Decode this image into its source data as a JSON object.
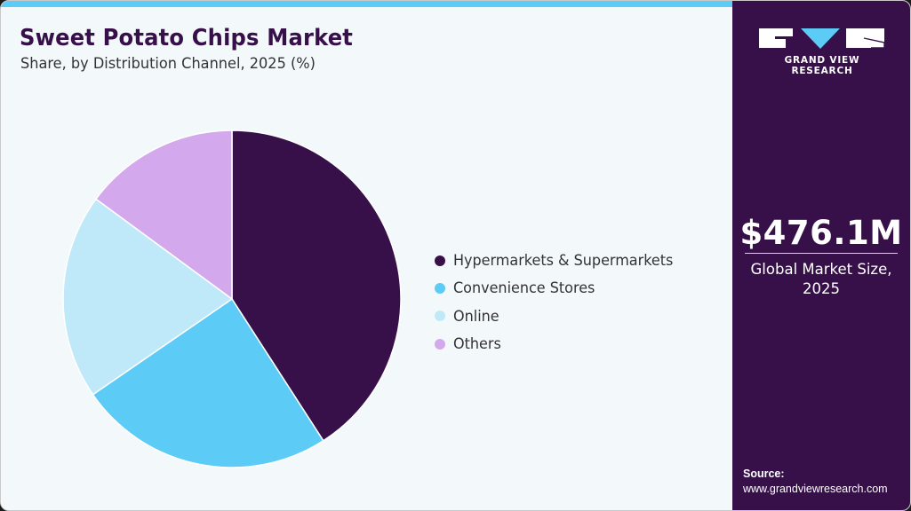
{
  "header": {
    "title": "Sweet Potato Chips Market",
    "subtitle": "Share, by Distribution Channel, 2025 (%)"
  },
  "chart_data": {
    "type": "pie",
    "title": "Sweet Potato Chips Market",
    "subtitle": "Share, by Distribution Channel, 2025 (%)",
    "categories": [
      "Hypermarkets & Supermarkets",
      "Convenience Stores",
      "Online",
      "Others"
    ],
    "values": [
      40.9,
      24.5,
      19.7,
      14.9
    ],
    "colors": [
      "#37104a",
      "#5ccbf5",
      "#bfe9f9",
      "#d4a8ec"
    ],
    "start_angle": "12 o'clock",
    "direction": "clockwise",
    "legend_position": "right",
    "data_labels": false
  },
  "legend": {
    "items": [
      {
        "label": "Hypermarkets & Supermarkets",
        "color": "#37104a"
      },
      {
        "label": "Convenience Stores",
        "color": "#5ccbf5"
      },
      {
        "label": "Online",
        "color": "#bfe9f9"
      },
      {
        "label": "Others",
        "color": "#d4a8ec"
      }
    ]
  },
  "sidebar": {
    "brand": "GRAND VIEW RESEARCH",
    "market_value": "$476.1M",
    "market_value_label": "Global Market Size, 2025",
    "source_heading": "Source:",
    "source_url": "www.grandviewresearch.com"
  },
  "colors": {
    "accent_dark": "#37104a",
    "accent_blue": "#5ccbf5",
    "background": "#f3f8fb"
  }
}
